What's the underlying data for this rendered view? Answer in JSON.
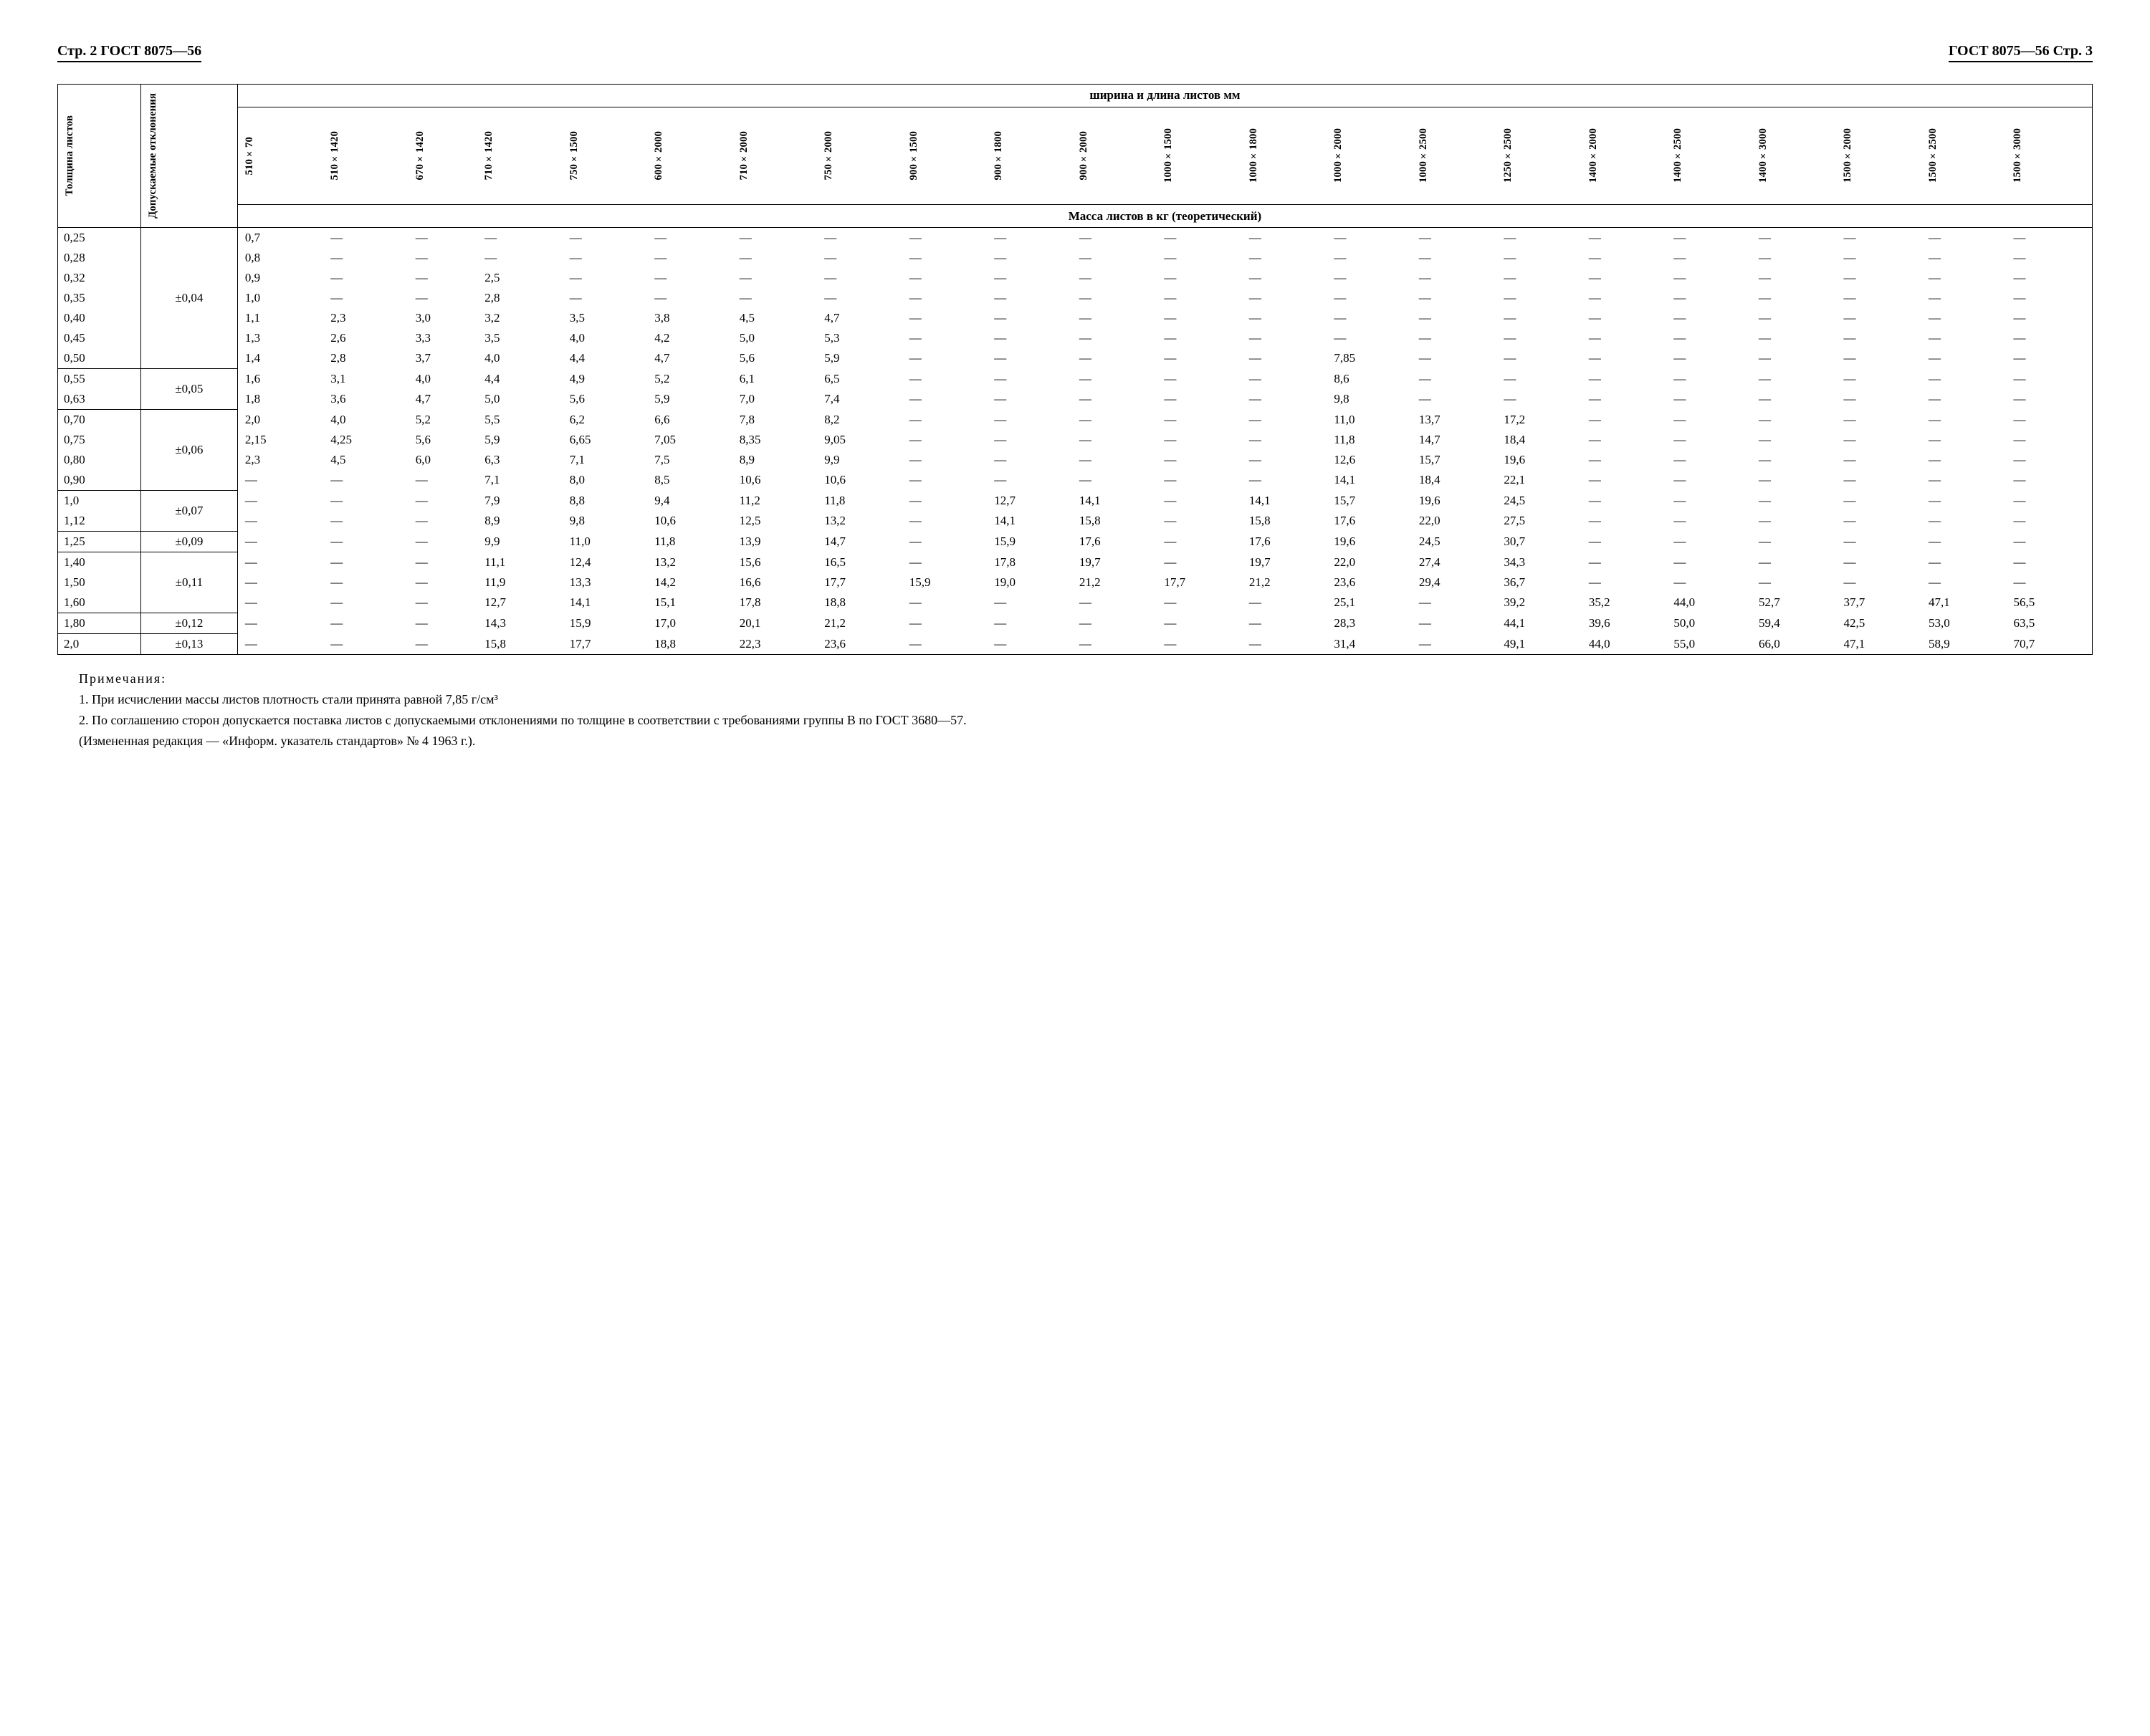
{
  "header_left": "Стр. 2   ГОСТ 8075—56",
  "header_right": "ГОСТ 8075—56   Стр. 3",
  "col_thickness": "Толщина листов",
  "col_tolerance": "Допускаемые отклонения",
  "span_header": "ширина и длина   листов мм",
  "mass_header": "Масса листов в кг   (теоретический)",
  "size_cols": [
    "510×70",
    "510×1420",
    "670×1420",
    "710×1420",
    "750×1500",
    "600×2000",
    "710×2000",
    "750×2000",
    "900×1500",
    "900×1800",
    "900×2000",
    "1000×1500",
    "1000×1800",
    "1000×2000",
    "1000×2500",
    "1250×2500",
    "1400×2000",
    "1400×2500",
    "1400×3000",
    "1500×2000",
    "1500×2500",
    "1500×3000"
  ],
  "tolerances": [
    {
      "label": "±0,04",
      "span": 7
    },
    {
      "label": "±0,05",
      "span": 2
    },
    {
      "label": "±0,06",
      "span": 4
    },
    {
      "label": "±0,07",
      "span": 2
    },
    {
      "label": "±0,09",
      "span": 1
    },
    {
      "label": "±0,11",
      "span": 3
    },
    {
      "label": "±0,12",
      "span": 1
    },
    {
      "label": "±0,13",
      "span": 1
    }
  ],
  "rows": [
    {
      "t": "0,25",
      "u": 0,
      "v": [
        "0,7",
        "—",
        "—",
        "—",
        "—",
        "—",
        "—",
        "—",
        "—",
        "—",
        "—",
        "—",
        "—",
        "—",
        "—",
        "—",
        "—",
        "—",
        "—",
        "—",
        "—",
        "—"
      ]
    },
    {
      "t": "0,28",
      "u": 0,
      "v": [
        "0,8",
        "—",
        "—",
        "—",
        "—",
        "—",
        "—",
        "—",
        "—",
        "—",
        "—",
        "—",
        "—",
        "—",
        "—",
        "—",
        "—",
        "—",
        "—",
        "—",
        "—",
        "—"
      ]
    },
    {
      "t": "0,32",
      "u": 0,
      "v": [
        "0,9",
        "—",
        "—",
        "2,5",
        "—",
        "—",
        "—",
        "—",
        "—",
        "—",
        "—",
        "—",
        "—",
        "—",
        "—",
        "—",
        "—",
        "—",
        "—",
        "—",
        "—",
        "—"
      ]
    },
    {
      "t": "0,35",
      "u": 0,
      "v": [
        "1,0",
        "—",
        "—",
        "2,8",
        "—",
        "—",
        "—",
        "—",
        "—",
        "—",
        "—",
        "—",
        "—",
        "—",
        "—",
        "—",
        "—",
        "—",
        "—",
        "—",
        "—",
        "—"
      ]
    },
    {
      "t": "0,40",
      "u": 0,
      "v": [
        "1,1",
        "2,3",
        "3,0",
        "3,2",
        "3,5",
        "3,8",
        "4,5",
        "4,7",
        "—",
        "—",
        "—",
        "—",
        "—",
        "—",
        "—",
        "—",
        "—",
        "—",
        "—",
        "—",
        "—",
        "—"
      ]
    },
    {
      "t": "0,45",
      "u": 0,
      "v": [
        "1,3",
        "2,6",
        "3,3",
        "3,5",
        "4,0",
        "4,2",
        "5,0",
        "5,3",
        "—",
        "—",
        "—",
        "—",
        "—",
        "—",
        "—",
        "—",
        "—",
        "—",
        "—",
        "—",
        "—",
        "—"
      ]
    },
    {
      "t": "0,50",
      "u": 1,
      "v": [
        "1,4",
        "2,8",
        "3,7",
        "4,0",
        "4,4",
        "4,7",
        "5,6",
        "5,9",
        "—",
        "—",
        "—",
        "—",
        "—",
        "7,85",
        "—",
        "—",
        "—",
        "—",
        "—",
        "—",
        "—",
        "—"
      ]
    },
    {
      "t": "0,55",
      "u": 0,
      "v": [
        "1,6",
        "3,1",
        "4,0",
        "4,4",
        "4,9",
        "5,2",
        "6,1",
        "6,5",
        "—",
        "—",
        "—",
        "—",
        "—",
        "8,6",
        "—",
        "—",
        "—",
        "—",
        "—",
        "—",
        "—",
        "—"
      ]
    },
    {
      "t": "0,63",
      "u": 1,
      "v": [
        "1,8",
        "3,6",
        "4,7",
        "5,0",
        "5,6",
        "5,9",
        "7,0",
        "7,4",
        "—",
        "—",
        "—",
        "—",
        "—",
        "9,8",
        "—",
        "—",
        "—",
        "—",
        "—",
        "—",
        "—",
        "—"
      ]
    },
    {
      "t": "0,70",
      "u": 0,
      "v": [
        "2,0",
        "4,0",
        "5,2",
        "5,5",
        "6,2",
        "6,6",
        "7,8",
        "8,2",
        "—",
        "—",
        "—",
        "—",
        "—",
        "11,0",
        "13,7",
        "17,2",
        "—",
        "—",
        "—",
        "—",
        "—",
        "—"
      ]
    },
    {
      "t": "0,75",
      "u": 0,
      "v": [
        "2,15",
        "4,25",
        "5,6",
        "5,9",
        "6,65",
        "7,05",
        "8,35",
        "9,05",
        "—",
        "—",
        "—",
        "—",
        "—",
        "11,8",
        "14,7",
        "18,4",
        "—",
        "—",
        "—",
        "—",
        "—",
        "—"
      ]
    },
    {
      "t": "0,80",
      "u": 0,
      "v": [
        "2,3",
        "4,5",
        "6,0",
        "6,3",
        "7,1",
        "7,5",
        "8,9",
        "9,9",
        "—",
        "—",
        "—",
        "—",
        "—",
        "12,6",
        "15,7",
        "19,6",
        "—",
        "—",
        "—",
        "—",
        "—",
        "—"
      ]
    },
    {
      "t": "0,90",
      "u": 1,
      "v": [
        "—",
        "—",
        "—",
        "7,1",
        "8,0",
        "8,5",
        "10,6",
        "10,6",
        "—",
        "—",
        "—",
        "—",
        "—",
        "14,1",
        "18,4",
        "22,1",
        "—",
        "—",
        "—",
        "—",
        "—",
        "—"
      ]
    },
    {
      "t": "1,0",
      "u": 0,
      "v": [
        "—",
        "—",
        "—",
        "7,9",
        "8,8",
        "9,4",
        "11,2",
        "11,8",
        "—",
        "12,7",
        "14,1",
        "—",
        "14,1",
        "15,7",
        "19,6",
        "24,5",
        "—",
        "—",
        "—",
        "—",
        "—",
        "—"
      ]
    },
    {
      "t": "1,12",
      "u": 1,
      "v": [
        "—",
        "—",
        "—",
        "8,9",
        "9,8",
        "10,6",
        "12,5",
        "13,2",
        "—",
        "14,1",
        "15,8",
        "—",
        "15,8",
        "17,6",
        "22,0",
        "27,5",
        "—",
        "—",
        "—",
        "—",
        "—",
        "—"
      ]
    },
    {
      "t": "1,25",
      "u": 1,
      "v": [
        "—",
        "—",
        "—",
        "9,9",
        "11,0",
        "11,8",
        "13,9",
        "14,7",
        "—",
        "15,9",
        "17,6",
        "—",
        "17,6",
        "19,6",
        "24,5",
        "30,7",
        "—",
        "—",
        "—",
        "—",
        "—",
        "—"
      ]
    },
    {
      "t": "1,40",
      "u": 0,
      "v": [
        "—",
        "—",
        "—",
        "11,1",
        "12,4",
        "13,2",
        "15,6",
        "16,5",
        "—",
        "17,8",
        "19,7",
        "—",
        "19,7",
        "22,0",
        "27,4",
        "34,3",
        "—",
        "—",
        "—",
        "—",
        "—",
        "—"
      ]
    },
    {
      "t": "1,50",
      "u": 0,
      "v": [
        "—",
        "—",
        "—",
        "11,9",
        "13,3",
        "14,2",
        "16,6",
        "17,7",
        "15,9",
        "19,0",
        "21,2",
        "17,7",
        "21,2",
        "23,6",
        "29,4",
        "36,7",
        "—",
        "—",
        "—",
        "—",
        "—",
        "—"
      ]
    },
    {
      "t": "1,60",
      "u": 1,
      "v": [
        "—",
        "—",
        "—",
        "12,7",
        "14,1",
        "15,1",
        "17,8",
        "18,8",
        "—",
        "—",
        "—",
        "—",
        "—",
        "25,1",
        "—",
        "39,2",
        "35,2",
        "44,0",
        "52,7",
        "37,7",
        "47,1",
        "56,5"
      ]
    },
    {
      "t": "1,80",
      "u": 1,
      "v": [
        "—",
        "—",
        "—",
        "14,3",
        "15,9",
        "17,0",
        "20,1",
        "21,2",
        "—",
        "—",
        "—",
        "—",
        "—",
        "28,3",
        "—",
        "44,1",
        "39,6",
        "50,0",
        "59,4",
        "42,5",
        "53,0",
        "63,5"
      ]
    },
    {
      "t": "2,0",
      "u": 1,
      "v": [
        "—",
        "—",
        "—",
        "15,8",
        "17,7",
        "18,8",
        "22,3",
        "23,6",
        "—",
        "—",
        "—",
        "—",
        "—",
        "31,4",
        "—",
        "49,1",
        "44,0",
        "55,0",
        "66,0",
        "47,1",
        "58,9",
        "70,7"
      ]
    }
  ],
  "notes_title": "Примечания:",
  "note1": "1. При исчислении массы листов плотность стали принята равной 7,85 г/см³",
  "note2": "2. По соглашению сторон допускается поставка листов с допускаемыми отклонениями по толщине в соответствии с требованиями группы В по ГОСТ 3680—57.",
  "note3": "(Измененная редакция — «Информ. указатель стандартов» № 4 1963 г.)."
}
